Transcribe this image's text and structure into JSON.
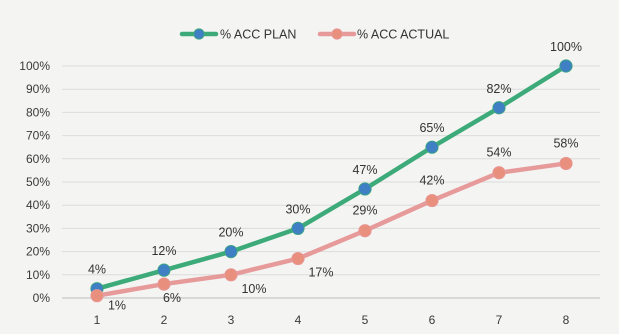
{
  "chart_data": {
    "type": "line",
    "title": "",
    "xlabel": "",
    "ylabel": "",
    "x": [
      1,
      2,
      3,
      4,
      5,
      6,
      7,
      8
    ],
    "ylim": [
      0,
      1
    ],
    "y_ticks": [
      "0%",
      "10%",
      "20%",
      "30%",
      "40%",
      "50%",
      "60%",
      "70%",
      "80%",
      "90%",
      "100%"
    ],
    "grid": "horizontal",
    "legend_position": "top-center",
    "series": [
      {
        "name": "% ACC PLAN",
        "line_color": "#3daa7a",
        "marker_color": "#3f7fc4",
        "values": [
          0.04,
          0.12,
          0.2,
          0.3,
          0.47,
          0.65,
          0.82,
          1.0
        ],
        "labels": [
          "4%",
          "12%",
          "20%",
          "30%",
          "47%",
          "65%",
          "82%",
          "100%"
        ]
      },
      {
        "name": "% ACC ACTUAL",
        "line_color": "#e79a9a",
        "marker_color": "#e98f7e",
        "values": [
          0.01,
          0.06,
          0.1,
          0.17,
          0.29,
          0.42,
          0.54,
          0.58
        ],
        "labels": [
          "1%",
          "6%",
          "10%",
          "17%",
          "29%",
          "42%",
          "54%",
          "58%"
        ]
      }
    ]
  }
}
